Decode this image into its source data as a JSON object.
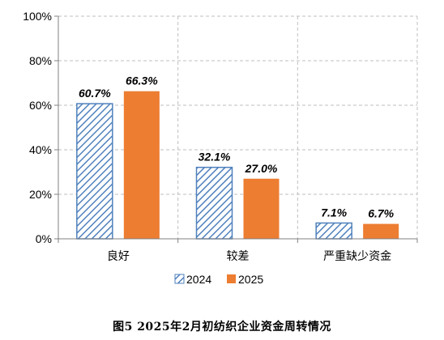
{
  "caption": "图5   2025年2月初纺织企业资金周转情况",
  "colors": {
    "series_2024": "#4F81BD",
    "series_2025": "#ED7D31",
    "grid": "#BFBFBF",
    "axis": "#808080",
    "text": "#000000"
  },
  "chart_data": {
    "type": "bar",
    "title": "",
    "xlabel": "",
    "ylabel": "",
    "categories": [
      "良好",
      "较差",
      "严重缺少资金"
    ],
    "series": [
      {
        "name": "2024",
        "values": [
          60.7,
          32.1,
          7.1
        ],
        "labels": [
          "60.7%",
          "32.1%",
          "7.1%"
        ],
        "pattern": "diagonal-hatch",
        "color": "#4F81BD"
      },
      {
        "name": "2025",
        "values": [
          66.3,
          27.0,
          6.7
        ],
        "labels": [
          "66.3%",
          "27.0%",
          "6.7%"
        ],
        "pattern": "solid",
        "color": "#ED7D31"
      }
    ],
    "ylim": [
      0,
      100
    ],
    "yticks": [
      0,
      20,
      40,
      60,
      80,
      100
    ],
    "ytick_labels": [
      "0%",
      "20%",
      "40%",
      "60%",
      "80%",
      "100%"
    ],
    "grid": "dashed",
    "legend_position": "bottom-center"
  }
}
